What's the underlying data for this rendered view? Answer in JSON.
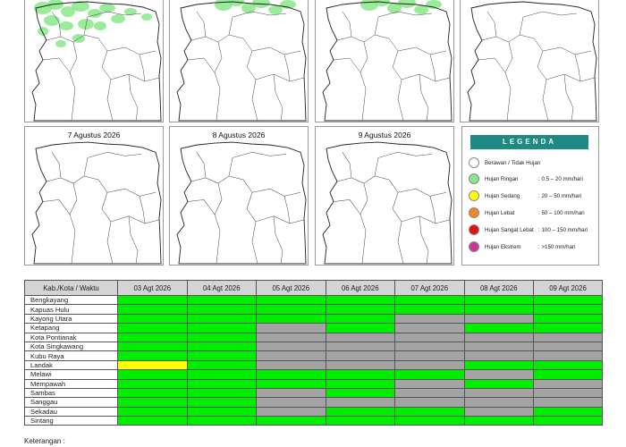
{
  "maps": [
    {
      "title": "",
      "rain": true
    },
    {
      "title": "",
      "rain": true
    },
    {
      "title": "",
      "rain": true
    },
    {
      "title": "",
      "rain": false
    },
    {
      "title": "7 Agustus 2026",
      "rain": false
    },
    {
      "title": "8 Agustus 2026",
      "rain": false
    },
    {
      "title": "9 Agustus 2026",
      "rain": false
    }
  ],
  "legend": {
    "title": "LEGENDA",
    "items": [
      {
        "name": "Berawan / Tidak Hujan",
        "range": "",
        "color": "#ffffff"
      },
      {
        "name": "Hujan Ringan",
        "range": ": 0.5 – 20 mm/hari",
        "color": "#88e888"
      },
      {
        "name": "Hujan Sedang",
        "range": ": 20 – 50 mm/hari",
        "color": "#ffff00"
      },
      {
        "name": "Hujan Lebat",
        "range": ": 50 – 100 mm/hari",
        "color": "#f08a24"
      },
      {
        "name": "Hujan Sangat Lebat",
        "range": ": 100 – 150 mm/hari",
        "color": "#e21010"
      },
      {
        "name": "Hujan Ekstrem",
        "range": ": >150 mm/hari",
        "color": "#cc3399"
      }
    ]
  },
  "table": {
    "corner": "Kab./Kota / Waktu",
    "dates": [
      "03 Agt 2026",
      "04 Agt 2026",
      "05 Agt 2026",
      "06 Agt 2026",
      "07 Agt 2026",
      "08 Agt 2026",
      "09 Agt 2026"
    ],
    "colors": {
      "g": "#00ee00",
      "x": "#a3a3a3",
      "y": "#ffff00"
    },
    "rows": [
      {
        "name": "Bengkayang",
        "cells": [
          "g",
          "g",
          "g",
          "g",
          "g",
          "g",
          "g"
        ]
      },
      {
        "name": "Kapuas Hulu",
        "cells": [
          "g",
          "g",
          "g",
          "g",
          "g",
          "g",
          "g"
        ]
      },
      {
        "name": "Kayong Utara",
        "cells": [
          "g",
          "g",
          "g",
          "g",
          "x",
          "x",
          "g"
        ]
      },
      {
        "name": "Ketapang",
        "cells": [
          "g",
          "g",
          "x",
          "g",
          "x",
          "g",
          "g"
        ]
      },
      {
        "name": "Kota Pontianak",
        "cells": [
          "g",
          "g",
          "x",
          "x",
          "x",
          "x",
          "x"
        ]
      },
      {
        "name": "Kota Singkawang",
        "cells": [
          "g",
          "g",
          "x",
          "x",
          "x",
          "x",
          "x"
        ]
      },
      {
        "name": "Kubu Raya",
        "cells": [
          "g",
          "g",
          "x",
          "x",
          "x",
          "x",
          "x"
        ]
      },
      {
        "name": "Landak",
        "cells": [
          "y",
          "g",
          "x",
          "x",
          "x",
          "g",
          "g"
        ]
      },
      {
        "name": "Melawi",
        "cells": [
          "g",
          "g",
          "g",
          "g",
          "g",
          "x",
          "g"
        ]
      },
      {
        "name": "Mempawah",
        "cells": [
          "g",
          "g",
          "g",
          "g",
          "x",
          "g",
          "x"
        ]
      },
      {
        "name": "Sambas",
        "cells": [
          "g",
          "g",
          "x",
          "g",
          "x",
          "x",
          "x"
        ]
      },
      {
        "name": "Sanggau",
        "cells": [
          "g",
          "g",
          "x",
          "x",
          "x",
          "x",
          "x"
        ]
      },
      {
        "name": "Sekadau",
        "cells": [
          "g",
          "g",
          "x",
          "g",
          "g",
          "x",
          "g"
        ]
      },
      {
        "name": "Sintang",
        "cells": [
          "g",
          "g",
          "g",
          "g",
          "g",
          "g",
          "g"
        ]
      }
    ]
  },
  "footnote": "Keterangan :"
}
